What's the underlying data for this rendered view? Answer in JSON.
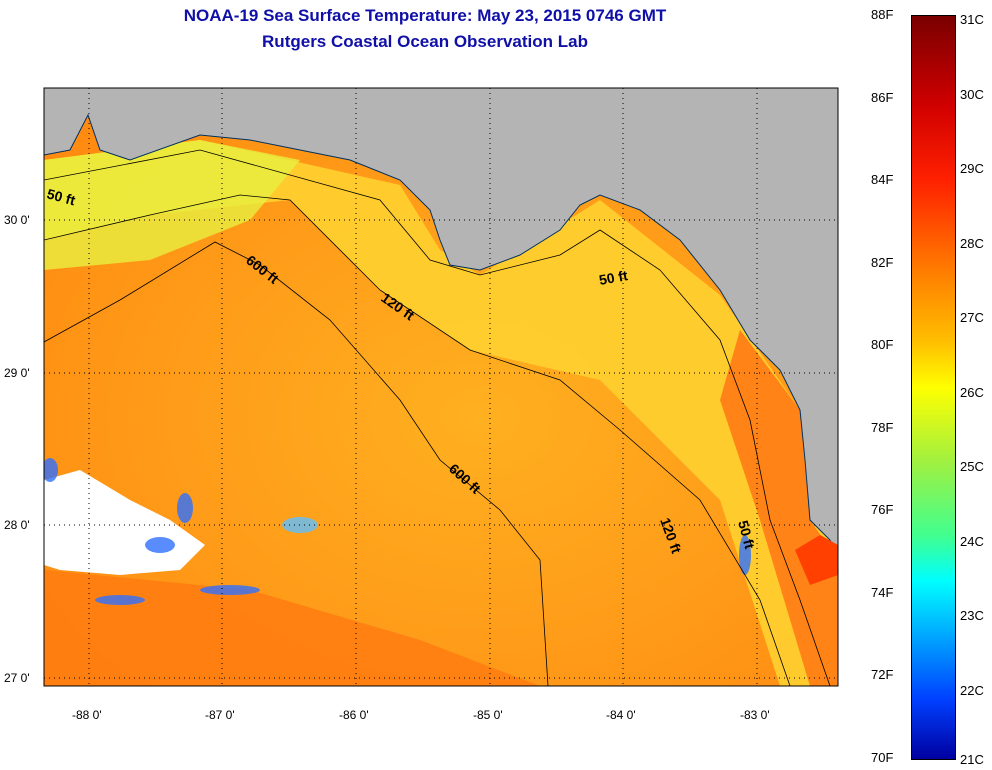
{
  "title": "NOAA-19 Sea Surface Temperature:  May 23, 2015 0746 GMT",
  "subtitle": "Rutgers Coastal Ocean Observation Lab",
  "lat_labels": [
    "30 0'",
    "29 0'",
    "28 0'",
    "27 0'"
  ],
  "lon_labels": [
    "-88 0'",
    "-87 0'",
    "-86 0'",
    "-85 0'",
    "-84 0'",
    "-83 0'"
  ],
  "contour_labels": {
    "c50a": "50 ft",
    "c50b": "50 ft",
    "c50c": "50 ft",
    "c120a": "120 ft",
    "c120b": "120 ft",
    "c600a": "600 ft",
    "c600b": "600 ft"
  },
  "colorbar": {
    "f_labels": [
      "88F",
      "86F",
      "84F",
      "82F",
      "80F",
      "78F",
      "76F",
      "74F",
      "72F",
      "70F"
    ],
    "c_labels": [
      "31C",
      "30C",
      "29C",
      "28C",
      "27C",
      "26C",
      "25C",
      "24C",
      "23C",
      "22C",
      "21C"
    ]
  },
  "colors": {
    "land": "#b4b4b4",
    "water_warm": "#ff9a10",
    "water_mid": "#ffd020",
    "cloud": "#ffffff",
    "title": "#1010a8"
  }
}
